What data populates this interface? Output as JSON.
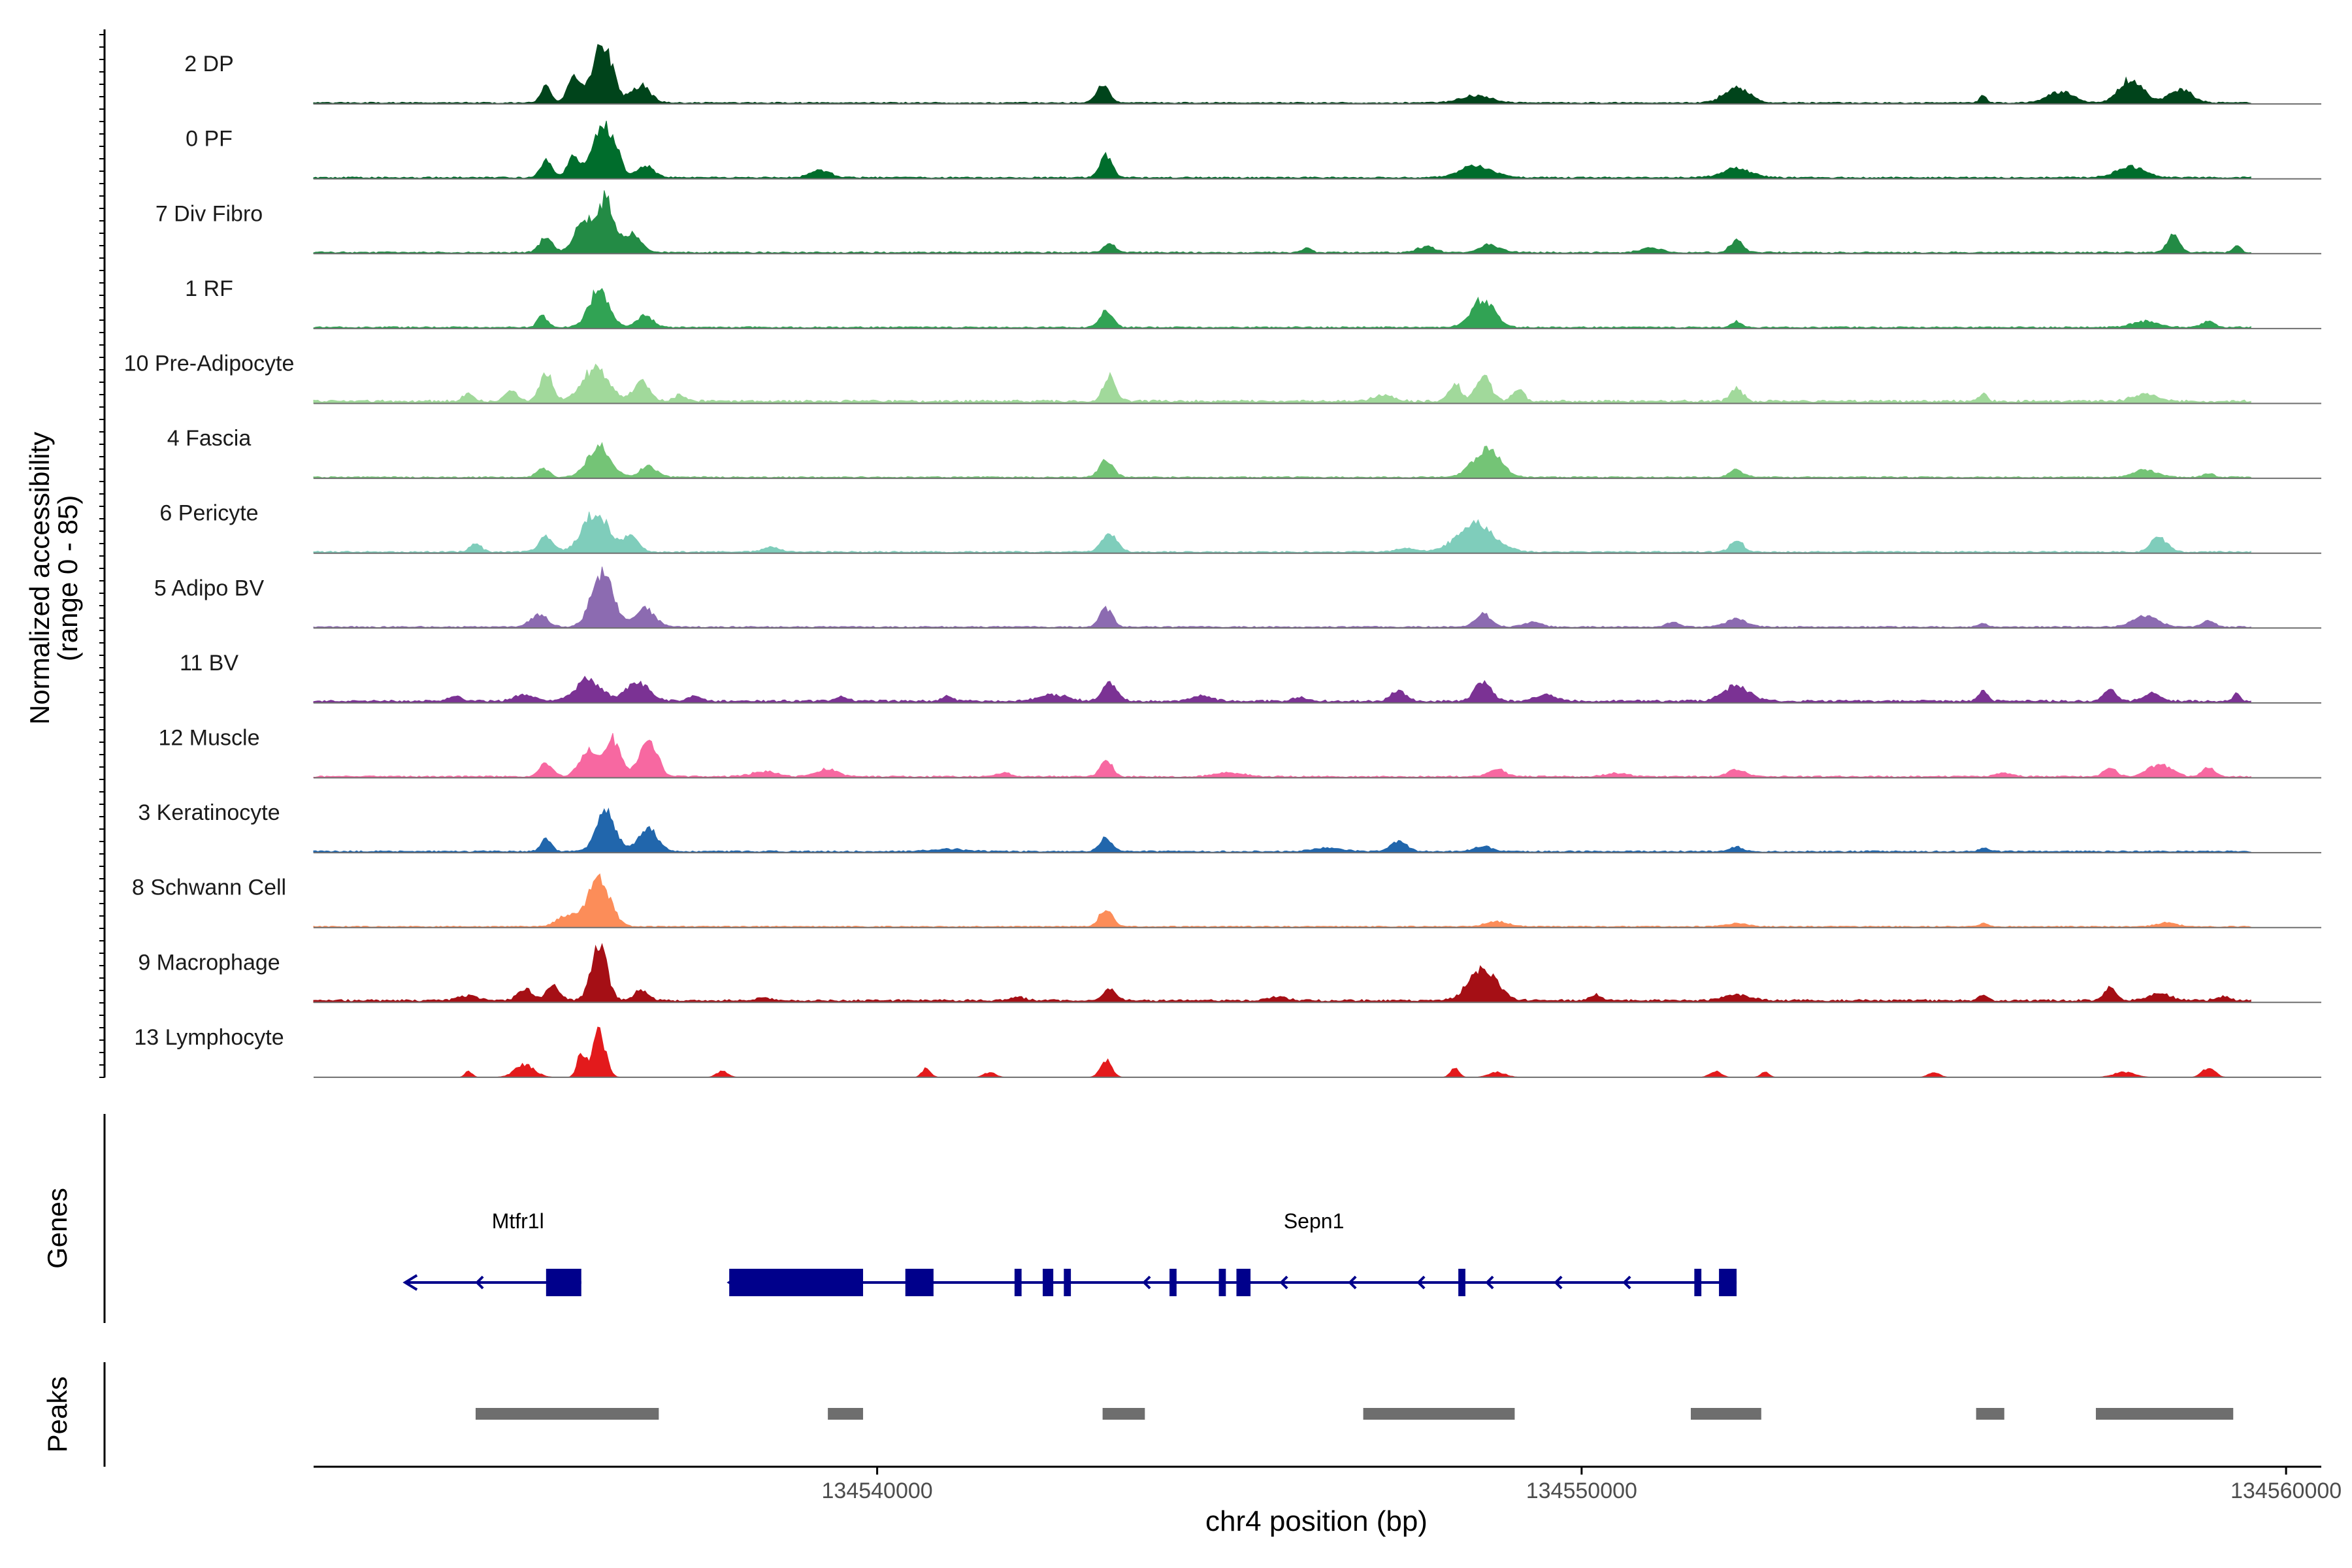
{
  "chart_data": {
    "type": "area",
    "ylabel_line1": "Normalized accessibility",
    "ylabel_line2": "(range 0 - 85)",
    "xlabel": "chr4 position (bp)",
    "xlim": [
      134532000,
      134560500
    ],
    "xticks": [
      134540000,
      134550000,
      134560000
    ],
    "xtick_labels": [
      "134540000",
      "134550000",
      "134560000"
    ],
    "track_start": 134532000,
    "track_end": 134559500,
    "tracks": [
      {
        "name": "2 DP",
        "color": "#00441b",
        "bg": 0.018,
        "peaks": [
          [
            134535300,
            0.28,
            70
          ],
          [
            134535700,
            0.42,
            90
          ],
          [
            134536100,
            0.95,
            140
          ],
          [
            134536650,
            0.28,
            130
          ],
          [
            134543200,
            0.3,
            90
          ],
          [
            134548500,
            0.12,
            220
          ],
          [
            134552200,
            0.25,
            180
          ],
          [
            134555700,
            0.12,
            50
          ],
          [
            134556800,
            0.18,
            180
          ],
          [
            134557800,
            0.38,
            170
          ],
          [
            134558500,
            0.22,
            160
          ]
        ]
      },
      {
        "name": "0 PF",
        "color": "#006d2c",
        "bg": 0.02,
        "peaks": [
          [
            134535300,
            0.28,
            80
          ],
          [
            134535700,
            0.36,
            90
          ],
          [
            134536050,
            0.7,
            110
          ],
          [
            134536250,
            0.55,
            100
          ],
          [
            134536700,
            0.2,
            120
          ],
          [
            134539200,
            0.12,
            140
          ],
          [
            134543250,
            0.35,
            90
          ],
          [
            134548500,
            0.2,
            220
          ],
          [
            134552200,
            0.15,
            200
          ],
          [
            134557800,
            0.18,
            200
          ]
        ]
      },
      {
        "name": "7 Div Fibro",
        "color": "#238b45",
        "bg": 0.02,
        "peaks": [
          [
            134535300,
            0.25,
            90
          ],
          [
            134535850,
            0.55,
            130
          ],
          [
            134536150,
            0.85,
            100
          ],
          [
            134536500,
            0.3,
            140
          ],
          [
            134543300,
            0.15,
            80
          ],
          [
            134546100,
            0.08,
            60
          ],
          [
            134547800,
            0.1,
            120
          ],
          [
            134548700,
            0.12,
            150
          ],
          [
            134551000,
            0.08,
            140
          ],
          [
            134552200,
            0.2,
            90
          ],
          [
            134558400,
            0.3,
            80
          ],
          [
            134559300,
            0.1,
            60
          ]
        ]
      },
      {
        "name": "1 RF",
        "color": "#31a354",
        "bg": 0.02,
        "peaks": [
          [
            134535250,
            0.2,
            70
          ],
          [
            134536050,
            0.6,
            140
          ],
          [
            134536700,
            0.2,
            110
          ],
          [
            134543250,
            0.26,
            90
          ],
          [
            134548600,
            0.45,
            160
          ],
          [
            134552200,
            0.1,
            70
          ],
          [
            134558000,
            0.1,
            180
          ],
          [
            134558900,
            0.1,
            90
          ]
        ]
      },
      {
        "name": "10 Pre-Adipocyte",
        "color": "#a1d99b",
        "bg": 0.035,
        "peaks": [
          [
            134534200,
            0.12,
            80
          ],
          [
            134534800,
            0.15,
            100
          ],
          [
            134535300,
            0.45,
            90
          ],
          [
            134536000,
            0.55,
            180
          ],
          [
            134536650,
            0.35,
            110
          ],
          [
            134537200,
            0.1,
            90
          ],
          [
            134543300,
            0.4,
            90
          ],
          [
            134547200,
            0.1,
            140
          ],
          [
            134548200,
            0.3,
            80
          ],
          [
            134548600,
            0.4,
            110
          ],
          [
            134549100,
            0.2,
            80
          ],
          [
            134552200,
            0.2,
            90
          ],
          [
            134555700,
            0.12,
            60
          ],
          [
            134558000,
            0.12,
            170
          ]
        ]
      },
      {
        "name": "4 Fascia",
        "color": "#74c476",
        "bg": 0.018,
        "peaks": [
          [
            134535250,
            0.16,
            80
          ],
          [
            134536050,
            0.5,
            160
          ],
          [
            134536750,
            0.18,
            120
          ],
          [
            134543250,
            0.28,
            100
          ],
          [
            134548650,
            0.45,
            190
          ],
          [
            134552200,
            0.12,
            100
          ],
          [
            134558000,
            0.12,
            160
          ],
          [
            134558900,
            0.06,
            80
          ]
        ]
      },
      {
        "name": "6 Pericyte",
        "color": "#7fcdbb",
        "bg": 0.02,
        "peaks": [
          [
            134534300,
            0.14,
            80
          ],
          [
            134535300,
            0.25,
            100
          ],
          [
            134536000,
            0.65,
            180
          ],
          [
            134536500,
            0.25,
            110
          ],
          [
            134538500,
            0.08,
            120
          ],
          [
            134543300,
            0.28,
            110
          ],
          [
            134547500,
            0.06,
            150
          ],
          [
            134548500,
            0.45,
            260
          ],
          [
            134552200,
            0.2,
            90
          ],
          [
            134558200,
            0.25,
            110
          ]
        ]
      },
      {
        "name": "5 Adipo BV",
        "color": "#8c6bb1",
        "bg": 0.018,
        "peaks": [
          [
            134535200,
            0.2,
            120
          ],
          [
            134536100,
            0.9,
            150
          ],
          [
            134536700,
            0.3,
            140
          ],
          [
            134543250,
            0.3,
            90
          ],
          [
            134548600,
            0.22,
            110
          ],
          [
            134549300,
            0.08,
            120
          ],
          [
            134551300,
            0.08,
            90
          ],
          [
            134552200,
            0.14,
            140
          ],
          [
            134555700,
            0.06,
            60
          ],
          [
            134558000,
            0.18,
            180
          ],
          [
            134558900,
            0.1,
            90
          ]
        ]
      },
      {
        "name": "11 BV",
        "color": "#7b3294",
        "bg": 0.03,
        "peaks": [
          [
            134534000,
            0.08,
            100
          ],
          [
            134535000,
            0.1,
            140
          ],
          [
            134535900,
            0.35,
            180
          ],
          [
            134536600,
            0.3,
            160
          ],
          [
            134537400,
            0.08,
            100
          ],
          [
            134539500,
            0.06,
            90
          ],
          [
            134541000,
            0.08,
            80
          ],
          [
            134542500,
            0.1,
            200
          ],
          [
            134543300,
            0.3,
            100
          ],
          [
            134544600,
            0.08,
            150
          ],
          [
            134546000,
            0.06,
            90
          ],
          [
            134547400,
            0.18,
            100
          ],
          [
            134548600,
            0.32,
            120
          ],
          [
            134549500,
            0.1,
            140
          ],
          [
            134552200,
            0.25,
            180
          ],
          [
            134555700,
            0.18,
            60
          ],
          [
            134557500,
            0.2,
            80
          ],
          [
            134558100,
            0.12,
            120
          ],
          [
            134559300,
            0.15,
            50
          ]
        ]
      },
      {
        "name": "12 Muscle",
        "color": "#f768a1",
        "bg": 0.02,
        "peaks": [
          [
            134535300,
            0.22,
            90
          ],
          [
            134535900,
            0.45,
            120
          ],
          [
            134536250,
            0.6,
            110
          ],
          [
            134536750,
            0.65,
            120
          ],
          [
            134538400,
            0.08,
            180
          ],
          [
            134539300,
            0.12,
            150
          ],
          [
            134541800,
            0.06,
            100
          ],
          [
            134543250,
            0.3,
            80
          ],
          [
            134545000,
            0.06,
            200
          ],
          [
            134548800,
            0.12,
            120
          ],
          [
            134550500,
            0.06,
            150
          ],
          [
            134552200,
            0.12,
            120
          ],
          [
            134556000,
            0.06,
            120
          ],
          [
            134557500,
            0.15,
            90
          ],
          [
            134558200,
            0.2,
            160
          ],
          [
            134558900,
            0.15,
            90
          ]
        ]
      },
      {
        "name": "3 Keratinocyte",
        "color": "#2166ac",
        "bg": 0.02,
        "peaks": [
          [
            134535300,
            0.22,
            70
          ],
          [
            134536150,
            0.65,
            130
          ],
          [
            134536750,
            0.4,
            130
          ],
          [
            134541000,
            0.04,
            250
          ],
          [
            134543250,
            0.22,
            90
          ],
          [
            134546400,
            0.06,
            200
          ],
          [
            134547400,
            0.15,
            120
          ],
          [
            134548600,
            0.08,
            130
          ],
          [
            134552200,
            0.08,
            80
          ],
          [
            134555700,
            0.06,
            60
          ]
        ]
      },
      {
        "name": "8 Schwann Cell",
        "color": "#fc8d59",
        "bg": 0.015,
        "peaks": [
          [
            134535600,
            0.18,
            140
          ],
          [
            134536050,
            0.75,
            160
          ],
          [
            134543250,
            0.3,
            90
          ],
          [
            134548800,
            0.08,
            160
          ],
          [
            134552200,
            0.05,
            150
          ],
          [
            134555700,
            0.06,
            60
          ],
          [
            134558300,
            0.06,
            150
          ]
        ]
      },
      {
        "name": "9 Macrophage",
        "color": "#a50f15",
        "bg": 0.03,
        "peaks": [
          [
            134534200,
            0.08,
            140
          ],
          [
            134535000,
            0.18,
            100
          ],
          [
            134535400,
            0.25,
            90
          ],
          [
            134536050,
            0.9,
            110
          ],
          [
            134536650,
            0.18,
            100
          ],
          [
            134538400,
            0.06,
            80
          ],
          [
            134542000,
            0.06,
            100
          ],
          [
            134543300,
            0.18,
            100
          ],
          [
            134545700,
            0.06,
            120
          ],
          [
            134548600,
            0.5,
            200
          ],
          [
            134550200,
            0.1,
            90
          ],
          [
            134552200,
            0.1,
            180
          ],
          [
            134555700,
            0.1,
            60
          ],
          [
            134557500,
            0.22,
            80
          ],
          [
            134558200,
            0.12,
            150
          ],
          [
            134559100,
            0.06,
            100
          ]
        ]
      },
      {
        "name": "13 Lymphocyte",
        "color": "#e31a1c",
        "bg": 0,
        "peaks": [
          [
            134534200,
            0.1,
            50
          ],
          [
            134535000,
            0.2,
            140
          ],
          [
            134535800,
            0.4,
            60
          ],
          [
            134536050,
            0.75,
            90
          ],
          [
            134537800,
            0.1,
            80
          ],
          [
            134540700,
            0.15,
            60
          ],
          [
            134541600,
            0.08,
            80
          ],
          [
            134543250,
            0.28,
            80
          ],
          [
            134548200,
            0.15,
            60
          ],
          [
            134548800,
            0.08,
            120
          ],
          [
            134551900,
            0.1,
            80
          ],
          [
            134552600,
            0.08,
            60
          ],
          [
            134555000,
            0.08,
            80
          ],
          [
            134557700,
            0.08,
            150
          ],
          [
            134558900,
            0.15,
            90
          ]
        ]
      }
    ],
    "genes": {
      "label": "Genes",
      "color": "#00008b",
      "items": [
        {
          "name": "Mtfr1l",
          "start": 134533300,
          "end": 134535800,
          "exons": [
            [
              134535300,
              134535800
            ]
          ],
          "label_pos": 134534900
        },
        {
          "name": "Sepn1",
          "start": 134537900,
          "end": 134552200,
          "exons": [
            [
              134537900,
              134539800
            ],
            [
              134540400,
              134540800
            ],
            [
              134541950,
              134542050
            ],
            [
              134542350,
              134542500
            ],
            [
              134542650,
              134542750
            ],
            [
              134544150,
              134544250
            ],
            [
              134544850,
              134544950
            ],
            [
              134545100,
              134545300
            ],
            [
              134548250,
              134548350
            ],
            [
              134551600,
              134551700
            ],
            [
              134551950,
              134552200
            ]
          ],
          "label_pos": 134546200
        }
      ]
    },
    "peaks_track": {
      "label": "Peaks",
      "color": "#6e6e6e",
      "regions": [
        [
          134534300,
          134536900
        ],
        [
          134539300,
          134539800
        ],
        [
          134543200,
          134543800
        ],
        [
          134546900,
          134549050
        ],
        [
          134551550,
          134552550
        ],
        [
          134555600,
          134556000
        ],
        [
          134557300,
          134559250
        ]
      ]
    }
  }
}
